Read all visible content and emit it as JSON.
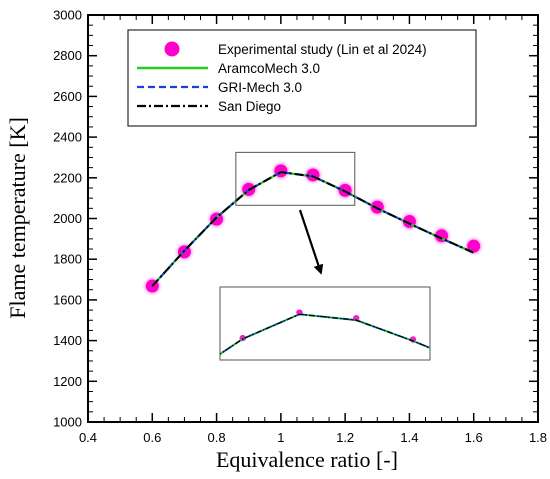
{
  "chart_data": {
    "type": "line",
    "xlabel": "Equivalence ratio [-]",
    "ylabel": "Flame temperature [K]",
    "xlim": [
      0.4,
      1.8
    ],
    "ylim": [
      1000,
      3000
    ],
    "xticks": [
      0.4,
      0.6,
      0.8,
      1.0,
      1.2,
      1.4,
      1.6,
      1.8
    ],
    "xtick_labels": [
      "0.4",
      "0.6",
      "0.8",
      "1",
      "1.2",
      "1.4",
      "1.6",
      "1.8"
    ],
    "yticks": [
      1000,
      1200,
      1400,
      1600,
      1800,
      2000,
      2200,
      2400,
      2600,
      2800,
      3000
    ],
    "ytick_labels": [
      "1000",
      "1200",
      "1400",
      "1600",
      "1800",
      "2000",
      "2200",
      "2400",
      "2600",
      "2800",
      "3000"
    ],
    "grid": false,
    "legend_position": "top",
    "series": [
      {
        "name": "Experimental study (Lin et al 2024)",
        "style": "marker",
        "color": "#ff00cc",
        "x": [
          0.6,
          0.7,
          0.8,
          0.9,
          1.0,
          1.1,
          1.2,
          1.3,
          1.4,
          1.5,
          1.6
        ],
        "y": [
          1668,
          1836,
          1997,
          2143,
          2234,
          2214,
          2138,
          2056,
          1985,
          1915,
          1864
        ]
      },
      {
        "name": "AramcoMech 3.0",
        "style": "solid",
        "color": "#22cc22",
        "x": [
          0.6,
          0.7,
          0.8,
          0.9,
          1.0,
          1.1,
          1.2,
          1.3,
          1.4,
          1.5,
          1.6
        ],
        "y": [
          1668,
          1842,
          2005,
          2140,
          2228,
          2207,
          2133,
          2050,
          1975,
          1902,
          1832
        ]
      },
      {
        "name": "GRI-Mech 3.0",
        "style": "dashed",
        "color": "#1a3fdd",
        "x": [
          0.6,
          0.7,
          0.8,
          0.9,
          1.0,
          1.1,
          1.2,
          1.3,
          1.4,
          1.5,
          1.6
        ],
        "y": [
          1668,
          1842,
          2005,
          2140,
          2228,
          2207,
          2133,
          2050,
          1975,
          1902,
          1832
        ]
      },
      {
        "name": "San Diego",
        "style": "dashdot",
        "color": "#000000",
        "x": [
          0.6,
          0.7,
          0.8,
          0.9,
          1.0,
          1.1,
          1.2,
          1.3,
          1.4,
          1.5,
          1.6
        ],
        "y": [
          1668,
          1842,
          2005,
          2140,
          2228,
          2207,
          2133,
          2050,
          1975,
          1902,
          1832
        ]
      }
    ],
    "inset": {
      "source_xlim": [
        0.86,
        1.23
      ],
      "source_ylim": [
        2065,
        2325
      ]
    }
  }
}
